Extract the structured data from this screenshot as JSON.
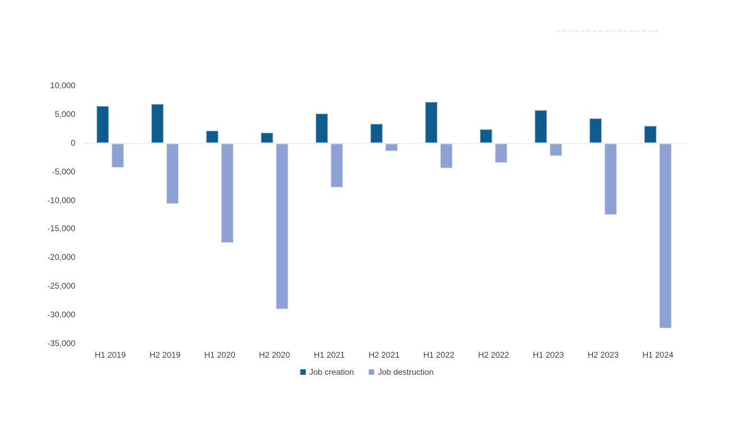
{
  "chart_data": {
    "type": "bar",
    "title": "",
    "xlabel": "",
    "ylabel": "",
    "categories": [
      "H1 2019",
      "H2 2019",
      "H1 2020",
      "H2 2020",
      "H1 2021",
      "H2 2021",
      "H1 2022",
      "H2 2022",
      "H1 2023",
      "H2 2023",
      "H1 2024"
    ],
    "series": [
      {
        "name": "Job creation",
        "color": "#0f5c8f",
        "values": [
          6500,
          6800,
          2100,
          1800,
          5100,
          3400,
          7200,
          2400,
          5700,
          4300,
          3000
        ]
      },
      {
        "name": "Job destruction",
        "color": "#8ea1d4",
        "values": [
          -4200,
          -10500,
          -17300,
          -29000,
          -7600,
          -1300,
          -4300,
          -3300,
          -2200,
          -12400,
          -32300
        ]
      }
    ],
    "ylim": [
      -35000,
      10000
    ],
    "yticks": [
      10000,
      5000,
      0,
      -5000,
      -10000,
      -15000,
      -20000,
      -25000,
      -30000,
      -35000
    ],
    "ytick_labels": [
      "10,000",
      "5,000",
      "0",
      "-5,000",
      "-10,000",
      "-15,000",
      "-20,000",
      "-25,000",
      "-30,000",
      "-35,000"
    ],
    "grid": false,
    "legend_position": "bottom",
    "axis_line_color": "#e9e9e9",
    "text_color": "#3d3d3d"
  }
}
